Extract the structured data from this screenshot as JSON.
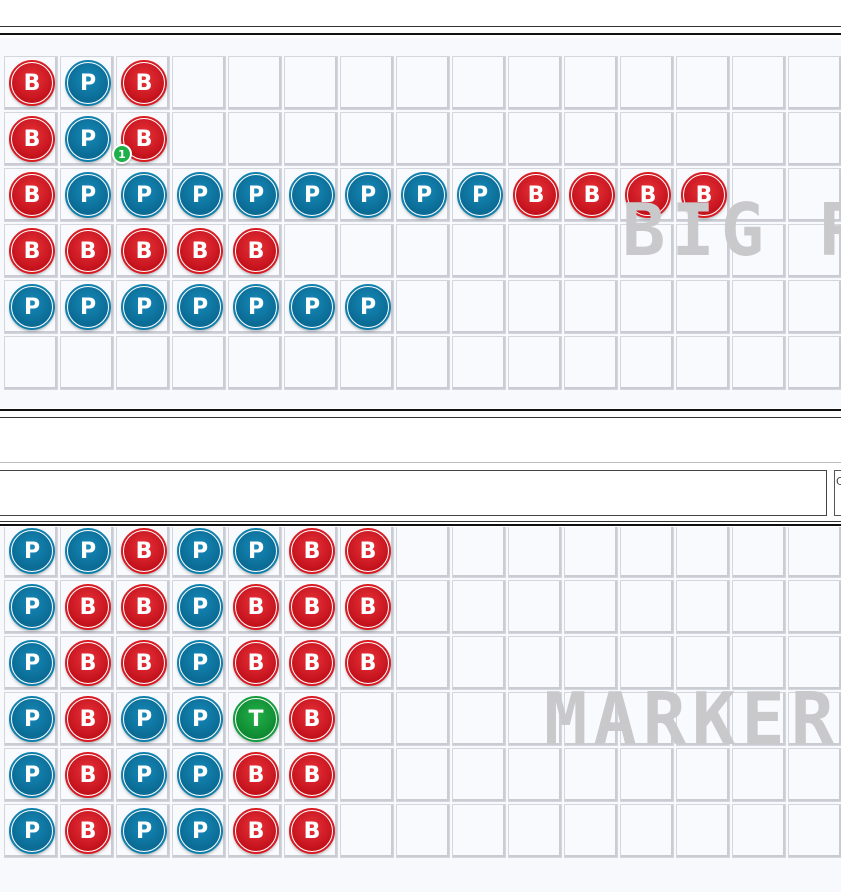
{
  "big_road": {
    "watermark": "BIG R",
    "columns": 15,
    "rows": 6,
    "beads": [
      [
        "B",
        "P",
        "B"
      ],
      [
        "B",
        "P",
        "B"
      ],
      [
        "B",
        "P",
        "P",
        "P",
        "P",
        "P",
        "P",
        "P",
        "P",
        "B",
        "B",
        "B",
        "B"
      ],
      [
        "B",
        "B",
        "B",
        "B",
        "B"
      ],
      [
        "P",
        "P",
        "P",
        "P",
        "P",
        "P",
        "P"
      ],
      []
    ],
    "badge": {
      "row": 1,
      "col": 2,
      "label": "1"
    }
  },
  "input_bar": {
    "value": "",
    "side_label": "C"
  },
  "marker_road": {
    "watermark": "MARKER",
    "columns": 15,
    "rows": 6,
    "beads": [
      [
        "P",
        "P",
        "B",
        "P",
        "P",
        "B",
        "B"
      ],
      [
        "P",
        "B",
        "B",
        "P",
        "B",
        "B",
        "B"
      ],
      [
        "P",
        "B",
        "B",
        "P",
        "B",
        "B",
        "B"
      ],
      [
        "P",
        "B",
        "P",
        "P",
        "T",
        "B"
      ],
      [
        "P",
        "B",
        "P",
        "P",
        "B",
        "B"
      ],
      [
        "P",
        "B",
        "P",
        "P",
        "B",
        "B"
      ]
    ]
  },
  "colors": {
    "banker": "#c4121c",
    "player": "#0a6b94",
    "tie": "#0f8a32",
    "grid_line": "#d3d6dc"
  }
}
